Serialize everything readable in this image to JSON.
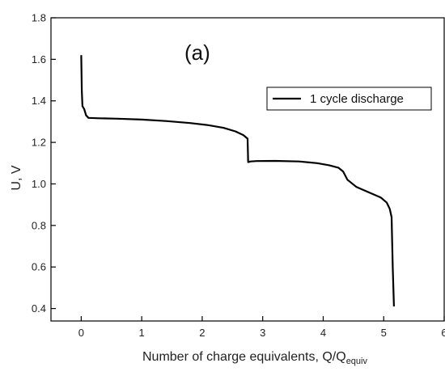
{
  "chart_data": {
    "type": "line",
    "title": "",
    "annotation": "(a)",
    "xlabel": "Number of charge equivalents, Q/Q",
    "xlabel_sub": "equiv",
    "ylabel": "U, V",
    "xlim": [
      -0.5,
      6
    ],
    "ylim": [
      0.34,
      1.8
    ],
    "xticks": [
      "0",
      "1",
      "2",
      "3",
      "4",
      "5",
      "6"
    ],
    "yticks": [
      "0.4",
      "0.6",
      "0.8",
      "1.0",
      "1.2",
      "1.4",
      "1.6",
      "1.8"
    ],
    "grid": false,
    "legend_position": "top-right",
    "line_color": "#000000",
    "series": [
      {
        "name": "1 cycle discharge",
        "points": [
          [
            0.0,
            1.62
          ],
          [
            0.01,
            1.45
          ],
          [
            0.02,
            1.375
          ],
          [
            0.05,
            1.36
          ],
          [
            0.08,
            1.33
          ],
          [
            0.12,
            1.318
          ],
          [
            0.3,
            1.316
          ],
          [
            0.6,
            1.314
          ],
          [
            1.0,
            1.31
          ],
          [
            1.4,
            1.303
          ],
          [
            1.8,
            1.293
          ],
          [
            2.1,
            1.283
          ],
          [
            2.35,
            1.27
          ],
          [
            2.55,
            1.253
          ],
          [
            2.68,
            1.235
          ],
          [
            2.75,
            1.218
          ],
          [
            2.76,
            1.105
          ],
          [
            2.8,
            1.108
          ],
          [
            2.9,
            1.11
          ],
          [
            3.2,
            1.111
          ],
          [
            3.6,
            1.108
          ],
          [
            3.9,
            1.1
          ],
          [
            4.1,
            1.09
          ],
          [
            4.25,
            1.078
          ],
          [
            4.33,
            1.06
          ],
          [
            4.4,
            1.02
          ],
          [
            4.55,
            0.985
          ],
          [
            4.75,
            0.96
          ],
          [
            4.95,
            0.935
          ],
          [
            5.05,
            0.91
          ],
          [
            5.1,
            0.88
          ],
          [
            5.13,
            0.84
          ],
          [
            5.15,
            0.6
          ],
          [
            5.17,
            0.41
          ]
        ]
      }
    ]
  }
}
